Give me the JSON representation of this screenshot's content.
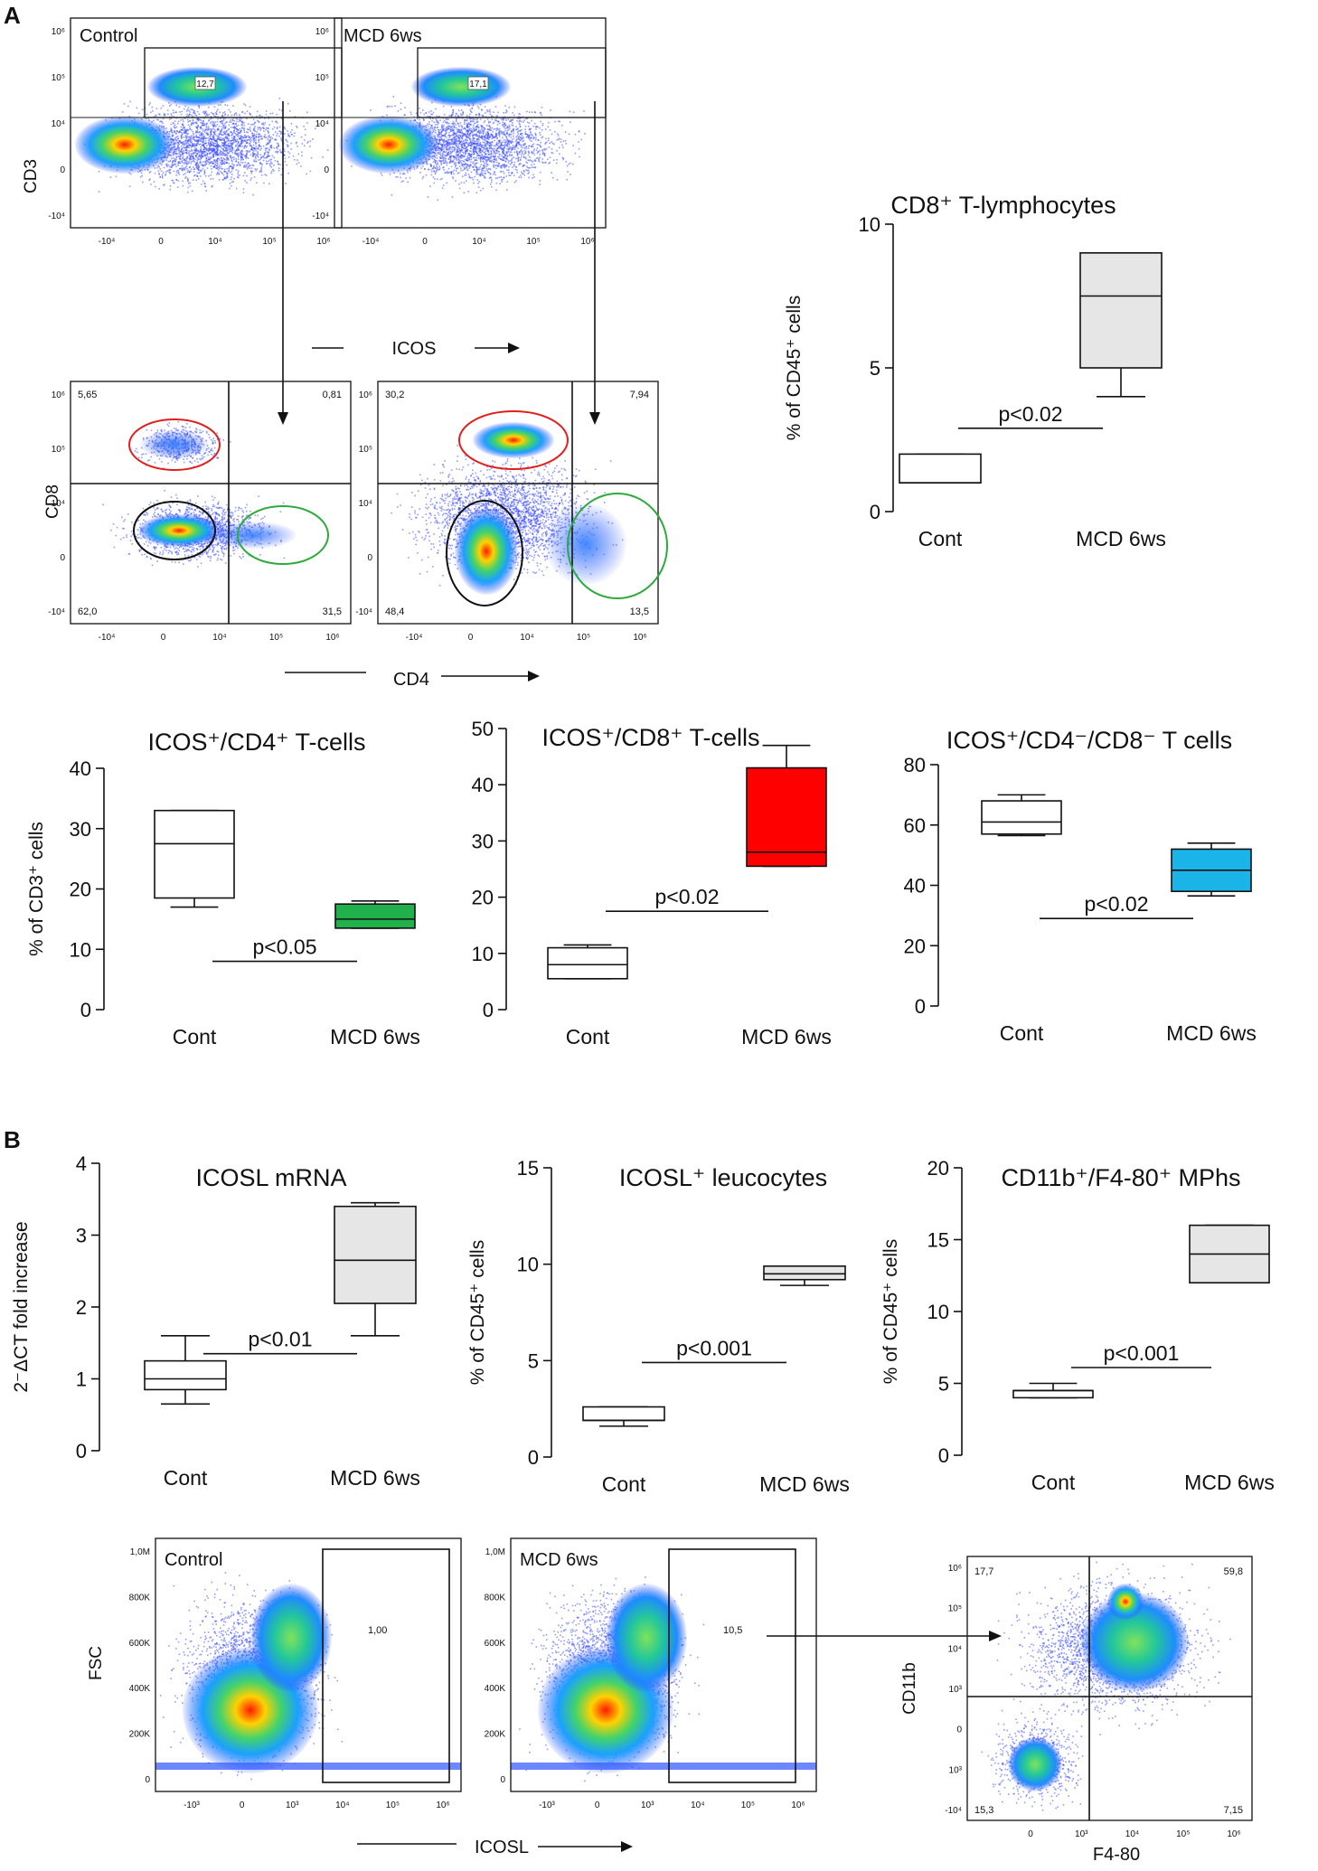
{
  "figure": {
    "panel_labels": {
      "a": "A",
      "b": "B"
    }
  },
  "flow_plots": {
    "cd3_icos": {
      "xaxis_label": "ICOS",
      "yaxis_label": "CD3",
      "x_ticks": [
        "-10⁴",
        "0",
        "10⁴",
        "10⁵",
        "10⁶"
      ],
      "y_ticks": [
        "10⁶",
        "10⁵",
        "10⁴",
        "0",
        "-10⁴"
      ],
      "control": {
        "title": "Control",
        "gate_value": "12,7"
      },
      "mcd": {
        "title": "MCD 6ws",
        "gate_value": "17,1"
      }
    },
    "cd8_cd4": {
      "xaxis_label": "CD4",
      "yaxis_label": "CD8",
      "x_ticks": [
        "-10⁴",
        "0",
        "10⁴",
        "10⁵",
        "10⁶"
      ],
      "y_ticks": [
        "10⁶",
        "10⁵",
        "10⁴",
        "0",
        "-10⁴"
      ],
      "control": {
        "q_ul": "5,65",
        "q_ur": "0,81",
        "q_ll": "62,0",
        "q_lr": "31,5"
      },
      "mcd": {
        "q_ul": "30,2",
        "q_ur": "7,94",
        "q_ll": "48,4",
        "q_lr": "13,5"
      }
    },
    "fsc_icosl": {
      "xaxis_label": "ICOSL",
      "yaxis_label": "FSC",
      "x_ticks": [
        "-10³",
        "0",
        "10³",
        "10⁴",
        "10⁵",
        "10⁶"
      ],
      "y_ticks": [
        "1,0M",
        "800K",
        "600K",
        "400K",
        "200K",
        "0"
      ],
      "control": {
        "title": "Control",
        "gate_value": "1,00"
      },
      "mcd": {
        "title": "MCD 6ws",
        "gate_value": "10,5"
      }
    },
    "cd11b_f480": {
      "xaxis_label": "F4-80",
      "yaxis_label": "CD11b",
      "x_ticks": [
        "0",
        "10³",
        "10⁴",
        "10⁵",
        "10⁶"
      ],
      "y_ticks": [
        "10⁶",
        "10⁵",
        "10⁴",
        "10³",
        "0",
        "10³",
        "-10⁴"
      ],
      "q_ul": "17,7",
      "q_ur": "59,8",
      "q_ll": "15,3",
      "q_lr": "7,15"
    }
  },
  "chart_data": [
    {
      "type": "box",
      "id": "cd8_tlymph",
      "title": "CD8⁺ T-lymphocytes",
      "ylabel": "% of CD45⁺ cells",
      "ylim": [
        0,
        10
      ],
      "yticks": [
        0,
        5,
        10
      ],
      "categories": [
        "Cont",
        "MCD 6ws"
      ],
      "boxes": [
        {
          "min": 1.0,
          "q1": 1.0,
          "median": 1.0,
          "q3": 2.0,
          "max": 2.0,
          "color": "#ffffff"
        },
        {
          "min": 4.0,
          "q1": 5.0,
          "median": 7.5,
          "q3": 9.0,
          "max": 9.0,
          "color": "#e6e6e6"
        }
      ],
      "pvalue": "p<0.02",
      "pline_y": 2.9
    },
    {
      "type": "box",
      "id": "icos_cd4",
      "title": "ICOS⁺/CD4⁺ T-cells",
      "ylabel": "% of CD3⁺ cells",
      "ylim": [
        0,
        40
      ],
      "yticks": [
        0,
        10,
        20,
        30,
        40
      ],
      "categories": [
        "Cont",
        "MCD 6ws"
      ],
      "boxes": [
        {
          "min": 17.0,
          "q1": 18.5,
          "median": 27.5,
          "q3": 33.0,
          "max": 33.0,
          "color": "#ffffff"
        },
        {
          "min": 13.5,
          "q1": 13.5,
          "median": 15.0,
          "q3": 17.5,
          "max": 18.0,
          "color": "#21b14c"
        }
      ],
      "pvalue": "p<0.05",
      "pline_y": 8.0
    },
    {
      "type": "box",
      "id": "icos_cd8",
      "title": "ICOS⁺/CD8⁺ T-cells",
      "ylabel": "",
      "ylim": [
        0,
        50
      ],
      "yticks": [
        0,
        10,
        20,
        30,
        40,
        50
      ],
      "categories": [
        "Cont",
        "MCD 6ws"
      ],
      "boxes": [
        {
          "min": 5.5,
          "q1": 5.5,
          "median": 8.0,
          "q3": 11.0,
          "max": 11.5,
          "color": "#ffffff"
        },
        {
          "min": 25.5,
          "q1": 25.5,
          "median": 28.0,
          "q3": 43.0,
          "max": 47.0,
          "color": "#ff0000"
        }
      ],
      "pvalue": "p<0.02",
      "pline_y": 17.5
    },
    {
      "type": "box",
      "id": "icos_dn",
      "title": "ICOS⁺/CD4⁻/CD8⁻ T cells",
      "ylabel": "",
      "ylim": [
        0,
        80
      ],
      "yticks": [
        0,
        20,
        40,
        60,
        80
      ],
      "categories": [
        "Cont",
        "MCD 6ws"
      ],
      "boxes": [
        {
          "min": 56.5,
          "q1": 57.0,
          "median": 61.0,
          "q3": 68.0,
          "max": 70.0,
          "color": "#ffffff"
        },
        {
          "min": 36.5,
          "q1": 38.0,
          "median": 45.0,
          "q3": 52.0,
          "max": 54.0,
          "color": "#1ab4e8"
        }
      ],
      "pvalue": "p<0.02",
      "pline_y": 29.0
    },
    {
      "type": "box",
      "id": "icosl_mrna",
      "title": "ICOSL mRNA",
      "ylabel": "2⁻ΔCT fold increase",
      "ylim": [
        0,
        4
      ],
      "yticks": [
        0,
        1,
        2,
        3,
        4
      ],
      "categories": [
        "Cont",
        "MCD 6ws"
      ],
      "boxes": [
        {
          "min": 0.65,
          "q1": 0.85,
          "median": 1.0,
          "q3": 1.25,
          "max": 1.6,
          "color": "#ffffff"
        },
        {
          "min": 1.6,
          "q1": 2.05,
          "median": 2.65,
          "q3": 3.4,
          "max": 3.45,
          "color": "#e6e6e6"
        }
      ],
      "pvalue": "p<0.01",
      "pline_y": 1.35
    },
    {
      "type": "box",
      "id": "icosl_leuco",
      "title": "ICOSL⁺ leucocytes",
      "ylabel": "% of CD45⁺ cells",
      "ylim": [
        0,
        15
      ],
      "yticks": [
        0,
        5,
        10,
        15
      ],
      "categories": [
        "Cont",
        "MCD 6ws"
      ],
      "boxes": [
        {
          "min": 1.6,
          "q1": 1.9,
          "median": 1.9,
          "q3": 2.6,
          "max": 2.6,
          "color": "#ffffff"
        },
        {
          "min": 8.9,
          "q1": 9.2,
          "median": 9.5,
          "q3": 9.9,
          "max": 9.9,
          "color": "#e6e6e6"
        }
      ],
      "pvalue": "p<0.001",
      "pline_y": 4.9
    },
    {
      "type": "box",
      "id": "cd11b_f480_mphs",
      "title": "CD11b⁺/F4-80⁺ MPhs",
      "ylabel": "% of CD45⁺ cells",
      "ylim": [
        0,
        20
      ],
      "yticks": [
        0,
        5,
        10,
        15,
        20
      ],
      "categories": [
        "Cont",
        "MCD 6ws"
      ],
      "boxes": [
        {
          "min": 4.0,
          "q1": 4.0,
          "median": 4.5,
          "q3": 4.5,
          "max": 5.0,
          "color": "#ffffff"
        },
        {
          "min": 12.0,
          "q1": 12.0,
          "median": 14.0,
          "q3": 16.0,
          "max": 16.0,
          "color": "#e6e6e6"
        }
      ],
      "pvalue": "p<0.001",
      "pline_y": 6.1
    }
  ]
}
